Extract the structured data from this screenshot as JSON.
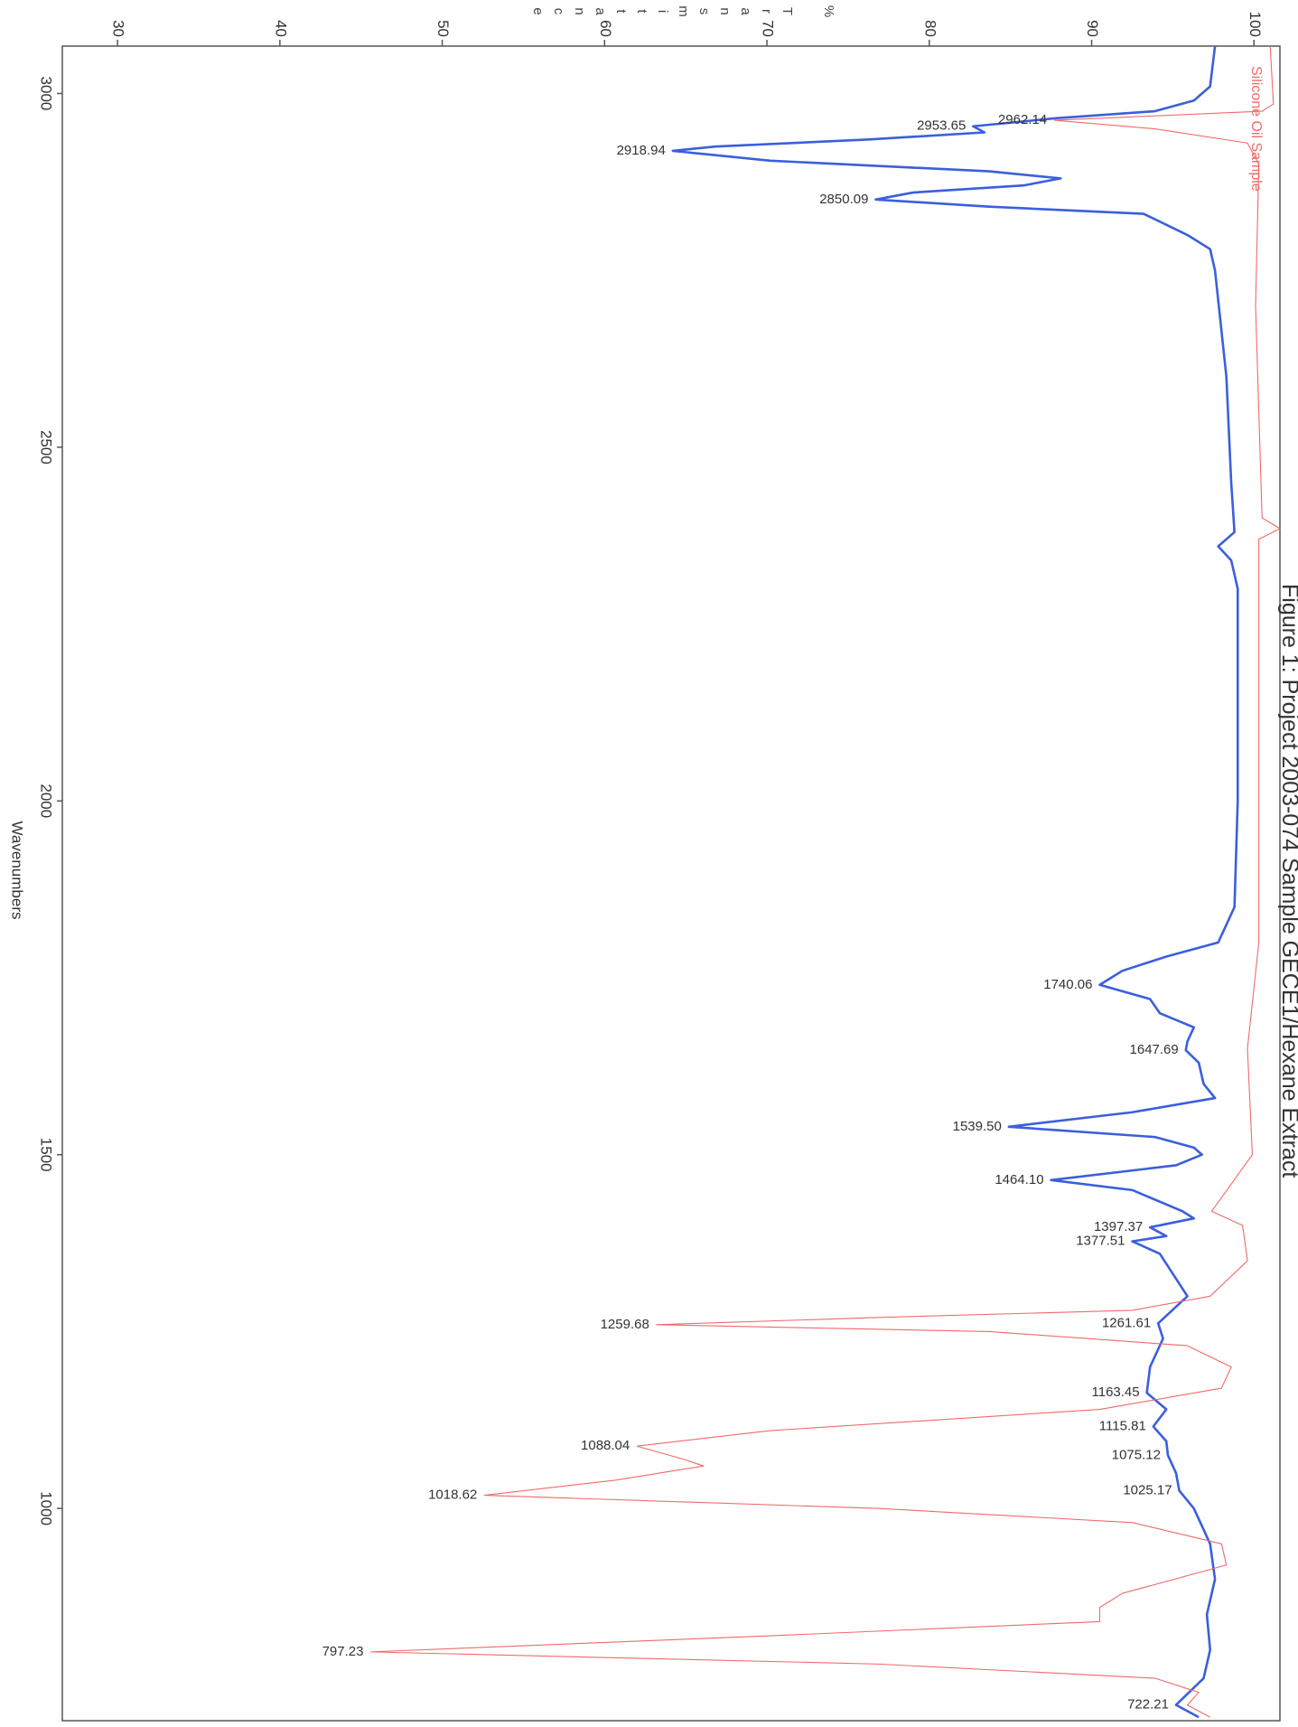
{
  "chart_data": {
    "type": "line",
    "title": "Figure 1: Project 2003-074 Sample GECE1/Hexane Extract",
    "x_label": "Wavenumbers",
    "y_label": "% Transmittance",
    "xlim": [
      3067,
      700
    ],
    "xticks": [
      3000,
      2500,
      2000,
      1500,
      1000
    ],
    "ylim": [
      26.6,
      101.6
    ],
    "yticks": [
      30,
      40,
      50,
      60,
      70,
      80,
      90,
      100
    ],
    "grid": false,
    "legend": "upper right",
    "series": [
      {
        "color": "#3b5fdc",
        "x": [
          3067,
          3010,
          2990,
          2975,
          2965,
          2953.65,
          2945,
          2935,
          2925,
          2918.94,
          2905,
          2890,
          2880,
          2870,
          2860,
          2850.09,
          2840,
          2830,
          2800,
          2780,
          2750,
          2600,
          2450,
          2380,
          2360,
          2340,
          2300,
          2000,
          1850,
          1800,
          1780,
          1760,
          1740.06,
          1720,
          1700,
          1680,
          1660,
          1647.69,
          1630,
          1600,
          1580,
          1560,
          1539.5,
          1525,
          1510,
          1500,
          1485,
          1464.1,
          1450,
          1420,
          1410,
          1397.37,
          1385,
          1377.51,
          1360,
          1300,
          1261.61,
          1240,
          1200,
          1163.45,
          1140,
          1115.81,
          1095,
          1075.12,
          1050,
          1025.17,
          1000,
          950,
          900,
          850,
          800,
          760,
          722.21,
          705
        ],
        "values": [
          97.6,
          97.3,
          96.3,
          93.9,
          87.8,
          82.7,
          83.4,
          76.3,
          66.8,
          64.2,
          70.2,
          83.7,
          88.1,
          85.8,
          79.0,
          76.7,
          83.7,
          93.2,
          95.9,
          97.3,
          97.6,
          98.3,
          98.6,
          98.8,
          97.8,
          98.6,
          99.0,
          99.0,
          98.8,
          97.8,
          94.6,
          91.9,
          90.5,
          93.6,
          94.2,
          96.3,
          95.9,
          95.8,
          96.6,
          96.9,
          97.6,
          92.5,
          84.9,
          93.9,
          96.3,
          96.8,
          95.2,
          87.5,
          92.5,
          95.6,
          96.3,
          93.6,
          94.6,
          92.5,
          94.2,
          95.9,
          94.1,
          94.4,
          93.6,
          93.4,
          94.6,
          93.8,
          94.6,
          94.7,
          95.2,
          95.4,
          96.3,
          97.3,
          97.6,
          97.1,
          97.3,
          96.9,
          95.2,
          96.6
        ],
        "peaks": [
          {
            "value": 2953.65,
            "label": "2953.65"
          },
          {
            "value": 2918.94,
            "label": "2918.94"
          },
          {
            "value": 2850.09,
            "label": "2850.09"
          },
          {
            "value": 1740.06,
            "label": "1740.06"
          },
          {
            "value": 1647.69,
            "label": "1647.69"
          },
          {
            "value": 1539.5,
            "label": "1539.50"
          },
          {
            "value": 1464.1,
            "label": "1464.10"
          },
          {
            "value": 1397.37,
            "label": "1397.37"
          },
          {
            "value": 1377.51,
            "label": "1377.51"
          },
          {
            "value": 1261.61,
            "label": "1261.61"
          },
          {
            "value": 1163.45,
            "label": "1163.45"
          },
          {
            "value": 1115.81,
            "label": "1115.81"
          },
          {
            "value": 1075.12,
            "label": "1075.12"
          },
          {
            "value": 1025.17,
            "label": "1025.17"
          },
          {
            "value": 722.21,
            "label": "722.21"
          }
        ]
      },
      {
        "name": "Silicone Oil Sample",
        "color": "#f06a6a",
        "x": [
          3067,
          2985,
          2975,
          2962.14,
          2950,
          2930,
          2900,
          2700,
          2400,
          2385,
          2370,
          2300,
          1800,
          1650,
          1500,
          1420,
          1400,
          1350,
          1300,
          1280,
          1270,
          1259.68,
          1250,
          1230,
          1200,
          1170,
          1140,
          1110,
          1088.04,
          1070,
          1060,
          1040,
          1018.62,
          1000,
          980,
          950,
          920,
          880,
          860,
          840,
          820,
          797.23,
          780,
          760,
          740,
          722,
          705
        ],
        "values": [
          101.0,
          101.2,
          100.5,
          87.7,
          93.9,
          99.6,
          100.3,
          100.1,
          100.5,
          101.6,
          100.3,
          100.3,
          100.3,
          99.6,
          99.9,
          97.4,
          99.3,
          99.6,
          97.3,
          92.5,
          76.9,
          63.2,
          83.7,
          95.9,
          98.6,
          98.0,
          90.5,
          70.2,
          62.0,
          64.8,
          66.1,
          60.7,
          52.6,
          76.9,
          92.5,
          98.0,
          98.3,
          91.9,
          90.5,
          90.5,
          70.2,
          45.6,
          76.9,
          93.9,
          96.6,
          95.9,
          97.3
        ],
        "peaks": [
          {
            "value": 2962.14,
            "label": "2962.14"
          },
          {
            "value": 1259.68,
            "label": "1259.68"
          },
          {
            "value": 1088.04,
            "label": "1088.04"
          },
          {
            "value": 1018.62,
            "label": "1018.62"
          },
          {
            "value": 797.23,
            "label": "797.23"
          }
        ]
      }
    ]
  }
}
